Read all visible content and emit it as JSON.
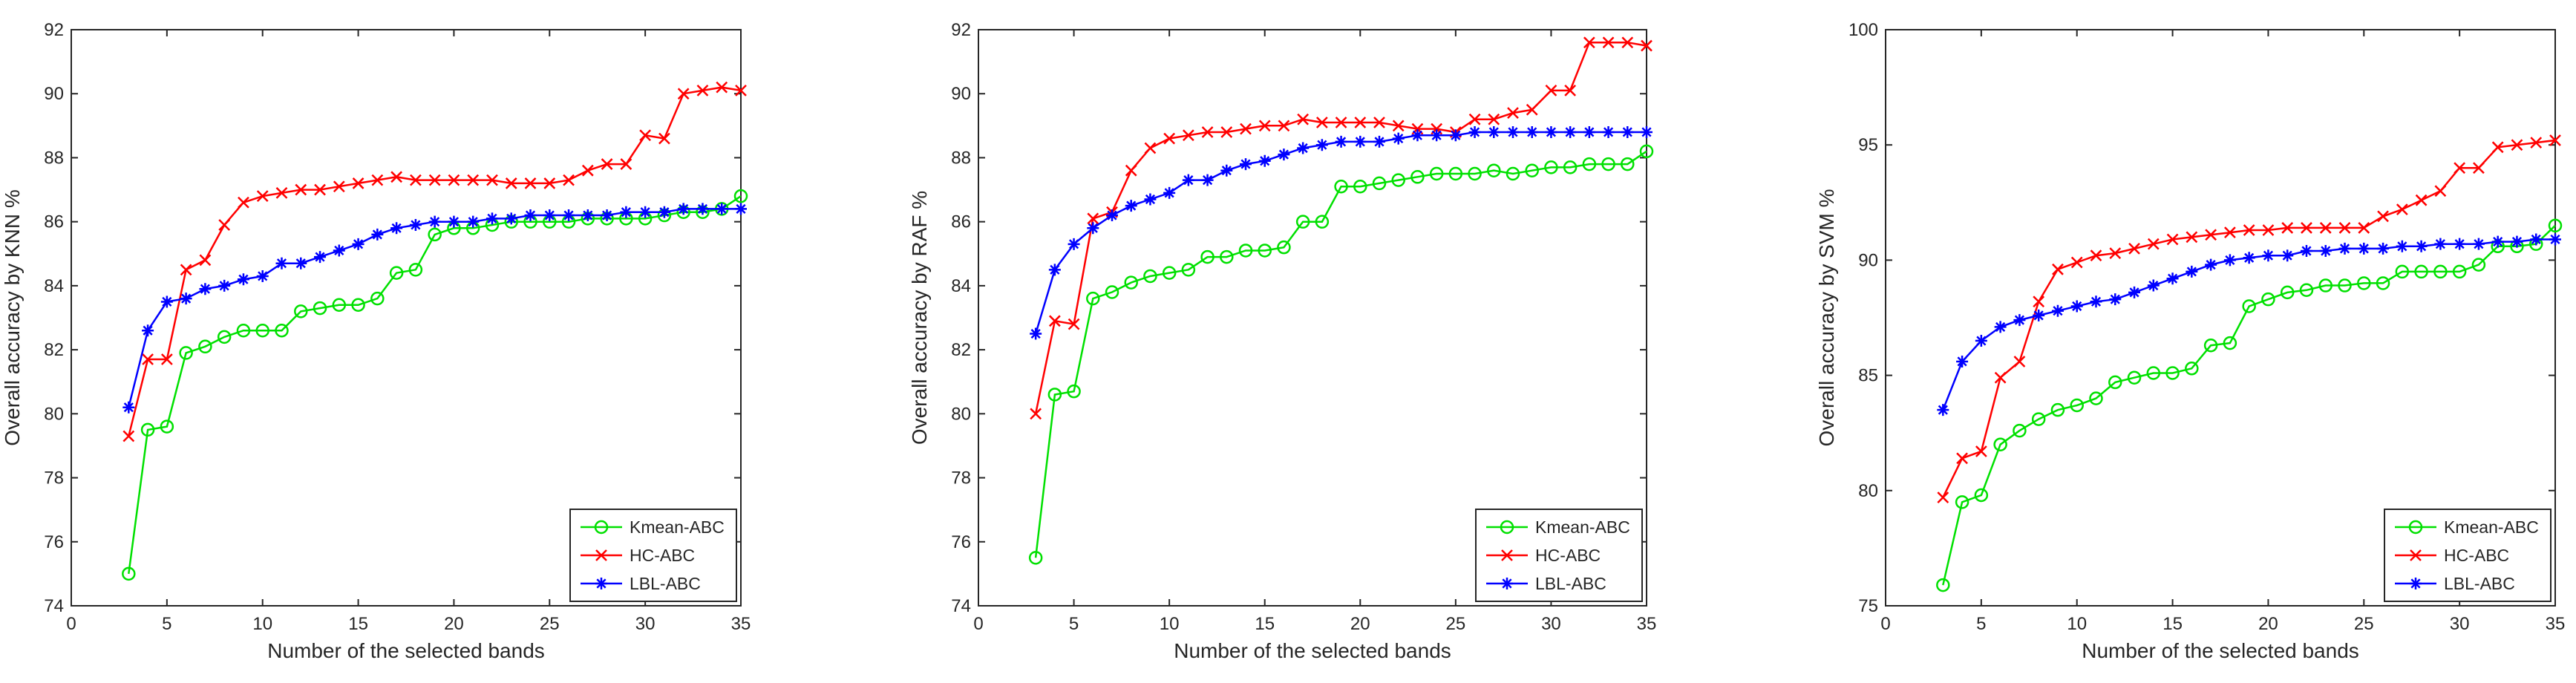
{
  "chart_data": [
    {
      "type": "line",
      "title": "",
      "xlabel": "Number of the selected bands",
      "ylabel": "Overall accuracy by KNN %",
      "xlim": [
        0,
        35
      ],
      "ylim": [
        74,
        92
      ],
      "xticks": [
        0,
        5,
        10,
        15,
        20,
        25,
        30,
        35
      ],
      "yticks": [
        74,
        76,
        78,
        80,
        82,
        84,
        86,
        88,
        90,
        92
      ],
      "legend_position": "bottom-right",
      "x": [
        3,
        4,
        5,
        6,
        7,
        8,
        9,
        10,
        11,
        12,
        13,
        14,
        15,
        16,
        17,
        18,
        19,
        20,
        21,
        22,
        23,
        24,
        25,
        26,
        27,
        28,
        29,
        30,
        31,
        32,
        33,
        34,
        35
      ],
      "series": [
        {
          "name": "Kmean-ABC",
          "color": "#00e000",
          "marker": "circle",
          "values": [
            75.0,
            79.5,
            79.6,
            81.9,
            82.1,
            82.4,
            82.6,
            82.6,
            82.6,
            83.2,
            83.3,
            83.4,
            83.4,
            83.6,
            84.4,
            84.5,
            85.6,
            85.8,
            85.8,
            85.9,
            86.0,
            86.0,
            86.0,
            86.0,
            86.1,
            86.1,
            86.1,
            86.1,
            86.2,
            86.3,
            86.3,
            86.4,
            86.8
          ]
        },
        {
          "name": "HC-ABC",
          "color": "#ff0000",
          "marker": "x",
          "values": [
            79.3,
            81.7,
            81.7,
            84.5,
            84.8,
            85.9,
            86.6,
            86.8,
            86.9,
            87.0,
            87.0,
            87.1,
            87.2,
            87.3,
            87.4,
            87.3,
            87.3,
            87.3,
            87.3,
            87.3,
            87.2,
            87.2,
            87.2,
            87.3,
            87.6,
            87.8,
            87.8,
            88.7,
            88.6,
            90.0,
            90.1,
            90.2,
            90.1
          ]
        },
        {
          "name": "LBL-ABC",
          "color": "#0000ff",
          "marker": "star",
          "values": [
            80.2,
            82.6,
            83.5,
            83.6,
            83.9,
            84.0,
            84.2,
            84.3,
            84.7,
            84.7,
            84.9,
            85.1,
            85.3,
            85.6,
            85.8,
            85.9,
            86.0,
            86.0,
            86.0,
            86.1,
            86.1,
            86.2,
            86.2,
            86.2,
            86.2,
            86.2,
            86.3,
            86.3,
            86.3,
            86.4,
            86.4,
            86.4,
            86.4
          ]
        }
      ]
    },
    {
      "type": "line",
      "title": "",
      "xlabel": "Number of the selected bands",
      "ylabel": "Overall accuracy by RAF %",
      "xlim": [
        0,
        35
      ],
      "ylim": [
        74,
        92
      ],
      "xticks": [
        0,
        5,
        10,
        15,
        20,
        25,
        30,
        35
      ],
      "yticks": [
        74,
        76,
        78,
        80,
        82,
        84,
        86,
        88,
        90,
        92
      ],
      "legend_position": "bottom-right",
      "x": [
        3,
        4,
        5,
        6,
        7,
        8,
        9,
        10,
        11,
        12,
        13,
        14,
        15,
        16,
        17,
        18,
        19,
        20,
        21,
        22,
        23,
        24,
        25,
        26,
        27,
        28,
        29,
        30,
        31,
        32,
        33,
        34,
        35
      ],
      "series": [
        {
          "name": "Kmean-ABC",
          "color": "#00e000",
          "marker": "circle",
          "values": [
            75.5,
            80.6,
            80.7,
            83.6,
            83.8,
            84.1,
            84.3,
            84.4,
            84.5,
            84.9,
            84.9,
            85.1,
            85.1,
            85.2,
            86.0,
            86.0,
            87.1,
            87.1,
            87.2,
            87.3,
            87.4,
            87.5,
            87.5,
            87.5,
            87.6,
            87.5,
            87.6,
            87.7,
            87.7,
            87.8,
            87.8,
            87.8,
            88.2
          ]
        },
        {
          "name": "HC-ABC",
          "color": "#ff0000",
          "marker": "x",
          "values": [
            80.0,
            82.9,
            82.8,
            86.1,
            86.3,
            87.6,
            88.3,
            88.6,
            88.7,
            88.8,
            88.8,
            88.9,
            89.0,
            89.0,
            89.2,
            89.1,
            89.1,
            89.1,
            89.1,
            89.0,
            88.9,
            88.9,
            88.8,
            89.2,
            89.2,
            89.4,
            89.5,
            90.1,
            90.1,
            91.6,
            91.6,
            91.6,
            91.5
          ]
        },
        {
          "name": "LBL-ABC",
          "color": "#0000ff",
          "marker": "star",
          "values": [
            82.5,
            84.5,
            85.3,
            85.8,
            86.2,
            86.5,
            86.7,
            86.9,
            87.3,
            87.3,
            87.6,
            87.8,
            87.9,
            88.1,
            88.3,
            88.4,
            88.5,
            88.5,
            88.5,
            88.6,
            88.7,
            88.7,
            88.7,
            88.8,
            88.8,
            88.8,
            88.8,
            88.8,
            88.8,
            88.8,
            88.8,
            88.8,
            88.8
          ]
        }
      ]
    },
    {
      "type": "line",
      "title": "",
      "xlabel": "Number of the selected bands",
      "ylabel": "Overall accuracy by SVM %",
      "xlim": [
        0,
        35
      ],
      "ylim": [
        75,
        100
      ],
      "xticks": [
        0,
        5,
        10,
        15,
        20,
        25,
        30,
        35
      ],
      "yticks": [
        75,
        80,
        85,
        90,
        95,
        100
      ],
      "legend_position": "bottom-right",
      "x": [
        3,
        4,
        5,
        6,
        7,
        8,
        9,
        10,
        11,
        12,
        13,
        14,
        15,
        16,
        17,
        18,
        19,
        20,
        21,
        22,
        23,
        24,
        25,
        26,
        27,
        28,
        29,
        30,
        31,
        32,
        33,
        34,
        35
      ],
      "series": [
        {
          "name": "Kmean-ABC",
          "color": "#00e000",
          "marker": "circle",
          "values": [
            75.9,
            79.5,
            79.8,
            82.0,
            82.6,
            83.1,
            83.5,
            83.7,
            84.0,
            84.7,
            84.9,
            85.1,
            85.1,
            85.3,
            86.3,
            86.4,
            88.0,
            88.3,
            88.6,
            88.7,
            88.9,
            88.9,
            89.0,
            89.0,
            89.5,
            89.5,
            89.5,
            89.5,
            89.8,
            90.6,
            90.6,
            90.7,
            91.5
          ]
        },
        {
          "name": "HC-ABC",
          "color": "#ff0000",
          "marker": "x",
          "values": [
            79.7,
            81.4,
            81.7,
            84.9,
            85.6,
            88.2,
            89.6,
            89.9,
            90.2,
            90.3,
            90.5,
            90.7,
            90.9,
            91.0,
            91.1,
            91.2,
            91.3,
            91.3,
            91.4,
            91.4,
            91.4,
            91.4,
            91.4,
            91.9,
            92.2,
            92.6,
            93.0,
            94.0,
            94.0,
            94.9,
            95.0,
            95.1,
            95.2
          ]
        },
        {
          "name": "LBL-ABC",
          "color": "#0000ff",
          "marker": "star",
          "values": [
            83.5,
            85.6,
            86.5,
            87.1,
            87.4,
            87.6,
            87.8,
            88.0,
            88.2,
            88.3,
            88.6,
            88.9,
            89.2,
            89.5,
            89.8,
            90.0,
            90.1,
            90.2,
            90.2,
            90.4,
            90.4,
            90.5,
            90.5,
            90.5,
            90.6,
            90.6,
            90.7,
            90.7,
            90.7,
            90.8,
            90.8,
            90.9,
            90.9
          ]
        }
      ]
    }
  ]
}
